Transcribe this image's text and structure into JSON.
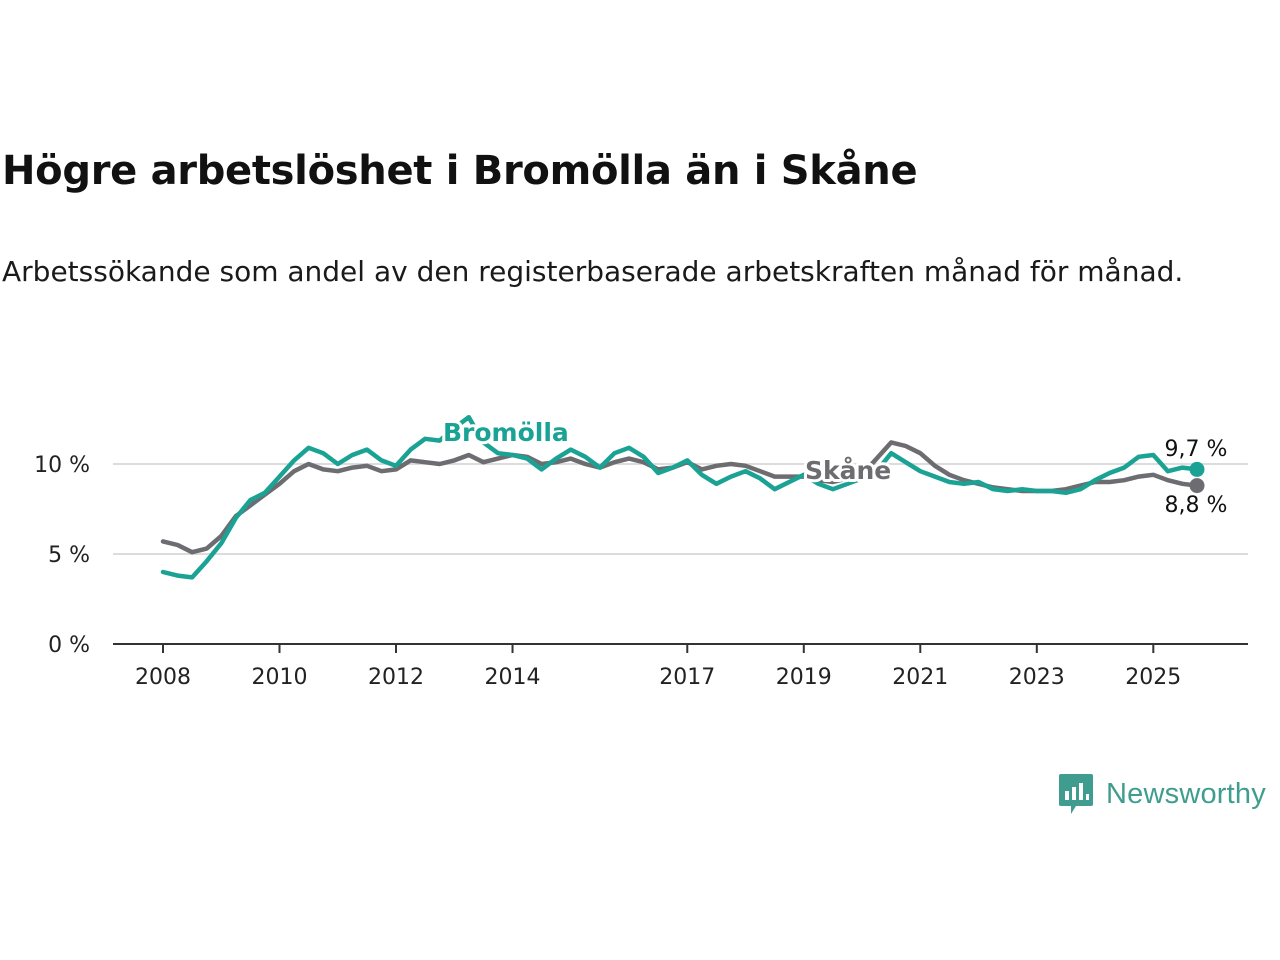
{
  "title": "Högre arbetslöshet i Bromölla än i Skåne",
  "subtitle": "Arbetssökande som andel av den registerbaserade arbetskraften månad för månad.",
  "brand": "Newsworthy",
  "colors": {
    "bromolla": "#1aa394",
    "skane": "#6d6c70",
    "grid": "#dcdcdc",
    "axis": "#333333",
    "brand": "#3f9d90"
  },
  "chart_data": {
    "type": "line",
    "title": "Högre arbetslöshet i Bromölla än i Skåne",
    "xlabel": "",
    "ylabel": "",
    "x_range": [
      2008.0,
      2025.75
    ],
    "ylim": [
      0,
      12
    ],
    "y_ticks": [
      0,
      5,
      10
    ],
    "y_tick_labels": [
      "0 %",
      "5 %",
      "10 %"
    ],
    "x_ticks": [
      2008,
      2010,
      2012,
      2014,
      2017,
      2019,
      2021,
      2023,
      2025
    ],
    "x_tick_labels": [
      "2008",
      "2010",
      "2012",
      "2014",
      "2017",
      "2019",
      "2021",
      "2023",
      "2025"
    ],
    "grid": true,
    "series": [
      {
        "name": "Bromölla",
        "end_label": "9,7 %",
        "points": [
          [
            2008.0,
            4.0
          ],
          [
            2008.25,
            3.8
          ],
          [
            2008.5,
            3.7
          ],
          [
            2008.75,
            4.6
          ],
          [
            2009.0,
            5.6
          ],
          [
            2009.25,
            7.0
          ],
          [
            2009.5,
            8.0
          ],
          [
            2009.75,
            8.4
          ],
          [
            2010.0,
            9.3
          ],
          [
            2010.25,
            10.2
          ],
          [
            2010.5,
            10.9
          ],
          [
            2010.75,
            10.6
          ],
          [
            2011.0,
            10.0
          ],
          [
            2011.25,
            10.5
          ],
          [
            2011.5,
            10.8
          ],
          [
            2011.75,
            10.2
          ],
          [
            2012.0,
            9.9
          ],
          [
            2012.25,
            10.8
          ],
          [
            2012.5,
            11.4
          ],
          [
            2012.75,
            11.3
          ],
          [
            2013.0,
            12.0
          ],
          [
            2013.25,
            12.6
          ],
          [
            2013.5,
            11.2
          ],
          [
            2013.75,
            10.6
          ],
          [
            2014.0,
            10.5
          ],
          [
            2014.25,
            10.3
          ],
          [
            2014.5,
            9.7
          ],
          [
            2014.75,
            10.3
          ],
          [
            2015.0,
            10.8
          ],
          [
            2015.25,
            10.4
          ],
          [
            2015.5,
            9.8
          ],
          [
            2015.75,
            10.6
          ],
          [
            2016.0,
            10.9
          ],
          [
            2016.25,
            10.4
          ],
          [
            2016.5,
            9.5
          ],
          [
            2016.75,
            9.8
          ],
          [
            2017.0,
            10.2
          ],
          [
            2017.25,
            9.4
          ],
          [
            2017.5,
            8.9
          ],
          [
            2017.75,
            9.3
          ],
          [
            2018.0,
            9.6
          ],
          [
            2018.25,
            9.2
          ],
          [
            2018.5,
            8.6
          ],
          [
            2018.75,
            9.0
          ],
          [
            2019.0,
            9.4
          ],
          [
            2019.25,
            8.9
          ],
          [
            2019.5,
            8.6
          ],
          [
            2019.75,
            8.9
          ],
          [
            2020.0,
            9.2
          ],
          [
            2020.25,
            9.6
          ],
          [
            2020.5,
            10.6
          ],
          [
            2020.75,
            10.1
          ],
          [
            2021.0,
            9.6
          ],
          [
            2021.25,
            9.3
          ],
          [
            2021.5,
            9.0
          ],
          [
            2021.75,
            8.9
          ],
          [
            2022.0,
            9.0
          ],
          [
            2022.25,
            8.6
          ],
          [
            2022.5,
            8.5
          ],
          [
            2022.75,
            8.6
          ],
          [
            2023.0,
            8.5
          ],
          [
            2023.25,
            8.5
          ],
          [
            2023.5,
            8.4
          ],
          [
            2023.75,
            8.6
          ],
          [
            2024.0,
            9.1
          ],
          [
            2024.25,
            9.5
          ],
          [
            2024.5,
            9.8
          ],
          [
            2024.75,
            10.4
          ],
          [
            2025.0,
            10.5
          ],
          [
            2025.25,
            9.6
          ],
          [
            2025.5,
            9.8
          ],
          [
            2025.75,
            9.7
          ]
        ]
      },
      {
        "name": "Skåne",
        "end_label": "8,8 %",
        "points": [
          [
            2008.0,
            5.7
          ],
          [
            2008.25,
            5.5
          ],
          [
            2008.5,
            5.1
          ],
          [
            2008.75,
            5.3
          ],
          [
            2009.0,
            6.0
          ],
          [
            2009.25,
            7.1
          ],
          [
            2009.5,
            7.7
          ],
          [
            2009.75,
            8.3
          ],
          [
            2010.0,
            8.9
          ],
          [
            2010.25,
            9.6
          ],
          [
            2010.5,
            10.0
          ],
          [
            2010.75,
            9.7
          ],
          [
            2011.0,
            9.6
          ],
          [
            2011.25,
            9.8
          ],
          [
            2011.5,
            9.9
          ],
          [
            2011.75,
            9.6
          ],
          [
            2012.0,
            9.7
          ],
          [
            2012.25,
            10.2
          ],
          [
            2012.5,
            10.1
          ],
          [
            2012.75,
            10.0
          ],
          [
            2013.0,
            10.2
          ],
          [
            2013.25,
            10.5
          ],
          [
            2013.5,
            10.1
          ],
          [
            2013.75,
            10.3
          ],
          [
            2014.0,
            10.5
          ],
          [
            2014.25,
            10.4
          ],
          [
            2014.5,
            10.0
          ],
          [
            2014.75,
            10.1
          ],
          [
            2015.0,
            10.3
          ],
          [
            2015.25,
            10.0
          ],
          [
            2015.5,
            9.8
          ],
          [
            2015.75,
            10.1
          ],
          [
            2016.0,
            10.3
          ],
          [
            2016.25,
            10.1
          ],
          [
            2016.5,
            9.7
          ],
          [
            2016.75,
            9.8
          ],
          [
            2017.0,
            10.1
          ],
          [
            2017.25,
            9.7
          ],
          [
            2017.5,
            9.9
          ],
          [
            2017.75,
            10.0
          ],
          [
            2018.0,
            9.9
          ],
          [
            2018.25,
            9.6
          ],
          [
            2018.5,
            9.3
          ],
          [
            2018.75,
            9.3
          ],
          [
            2019.0,
            9.3
          ],
          [
            2019.25,
            9.1
          ],
          [
            2019.5,
            9.0
          ],
          [
            2019.75,
            9.2
          ],
          [
            2020.0,
            9.4
          ],
          [
            2020.25,
            10.3
          ],
          [
            2020.5,
            11.2
          ],
          [
            2020.75,
            11.0
          ],
          [
            2021.0,
            10.6
          ],
          [
            2021.25,
            9.9
          ],
          [
            2021.5,
            9.4
          ],
          [
            2021.75,
            9.1
          ],
          [
            2022.0,
            8.9
          ],
          [
            2022.25,
            8.7
          ],
          [
            2022.5,
            8.6
          ],
          [
            2022.75,
            8.5
          ],
          [
            2023.0,
            8.5
          ],
          [
            2023.25,
            8.5
          ],
          [
            2023.5,
            8.6
          ],
          [
            2023.75,
            8.8
          ],
          [
            2024.0,
            9.0
          ],
          [
            2024.25,
            9.0
          ],
          [
            2024.5,
            9.1
          ],
          [
            2024.75,
            9.3
          ],
          [
            2025.0,
            9.4
          ],
          [
            2025.25,
            9.1
          ],
          [
            2025.5,
            8.9
          ],
          [
            2025.75,
            8.8
          ]
        ]
      }
    ]
  }
}
